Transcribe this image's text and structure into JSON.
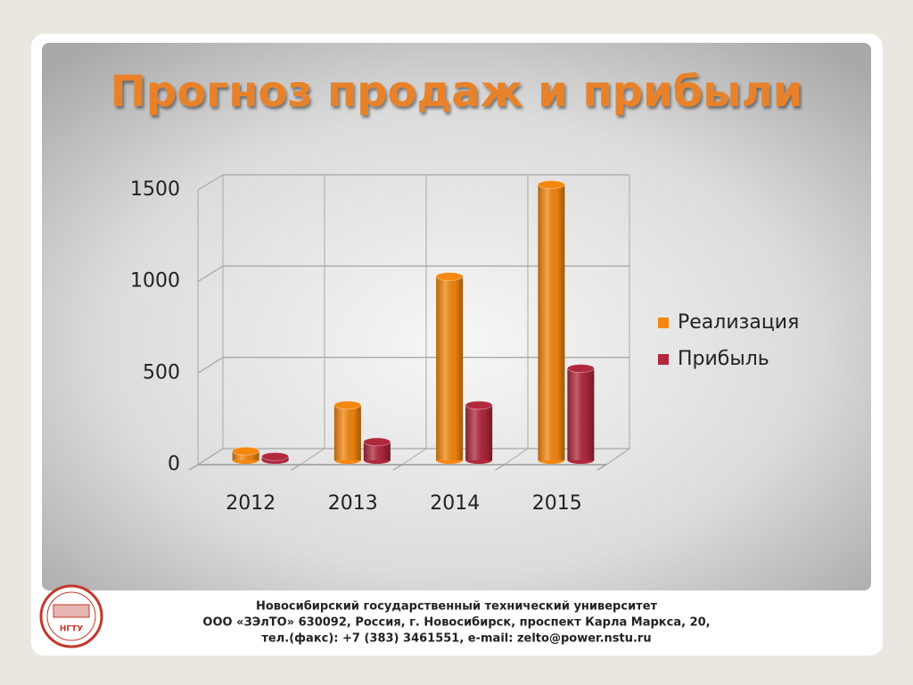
{
  "chart_data": {
    "type": "cylinder-bar",
    "title": "Прогноз продаж и прибыли",
    "categories": [
      "2012",
      "2013",
      "2014",
      "2015"
    ],
    "series": [
      {
        "name": "Реализация",
        "color": "#f5870f",
        "values": [
          50,
          300,
          1000,
          1500
        ]
      },
      {
        "name": "Прибыль",
        "color": "#b0283c",
        "values": [
          20,
          100,
          300,
          500
        ]
      }
    ],
    "ylim": [
      0,
      1500
    ],
    "yticks": [
      0,
      500,
      1000,
      1500
    ],
    "grid": true,
    "legend": "right"
  },
  "footer": {
    "logo": "НГТУ",
    "lines": [
      "Новосибирский государственный технический университет",
      "ООО «ЗЭлТО» 630092, Россия, г. Новосибирск, проспект Карла Маркса, 20,",
      "тел.(факс): +7 (383) 3461551, e-mail: zelto@power.nstu.ru"
    ]
  }
}
